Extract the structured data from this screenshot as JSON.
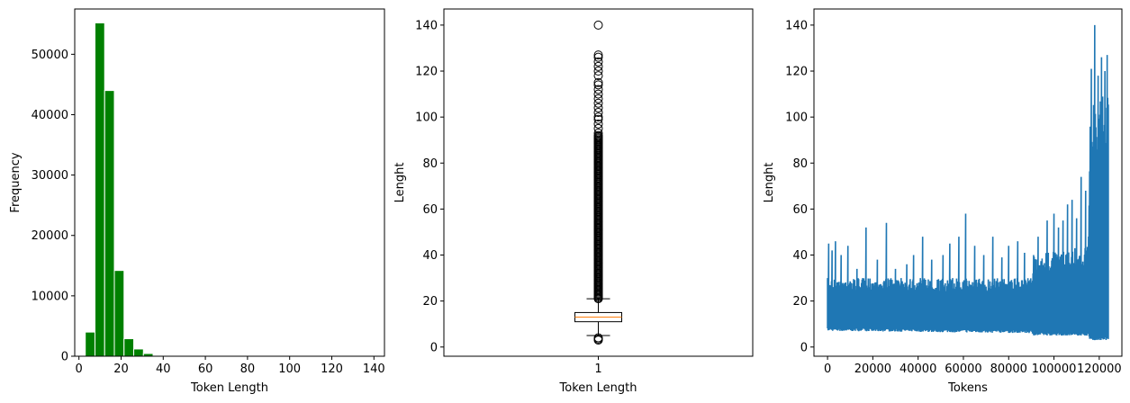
{
  "chart_data": [
    {
      "type": "bar",
      "subtype": "histogram",
      "xlabel": "Token Length",
      "ylabel": "Frequency",
      "xlim": [
        -2,
        145
      ],
      "ylim": [
        0,
        57500
      ],
      "xticks": [
        0,
        20,
        40,
        60,
        80,
        100,
        120,
        140
      ],
      "yticks": [
        0,
        10000,
        20000,
        30000,
        40000,
        50000
      ],
      "bin_width": 4.6,
      "bins": [
        {
          "start": 3.0,
          "value": 4000
        },
        {
          "start": 7.6,
          "value": 55200
        },
        {
          "start": 12.2,
          "value": 44000
        },
        {
          "start": 16.8,
          "value": 14200
        },
        {
          "start": 21.4,
          "value": 2900
        },
        {
          "start": 26.0,
          "value": 1200
        },
        {
          "start": 30.6,
          "value": 450
        },
        {
          "start": 35.2,
          "value": 150
        },
        {
          "start": 39.8,
          "value": 60
        },
        {
          "start": 44.4,
          "value": 25
        }
      ],
      "bar_color": "#008000",
      "edge_color": "#ffffff",
      "grid": false
    },
    {
      "type": "box",
      "xlabel": "Token Length",
      "ylabel": "Lenght",
      "ylim": [
        -4,
        147
      ],
      "xticks": [
        "1"
      ],
      "yticks": [
        0,
        20,
        40,
        60,
        80,
        100,
        120,
        140
      ],
      "box": {
        "q1": 11,
        "median": 13,
        "q3": 15,
        "whisker_low": 5,
        "whisker_high": 21
      },
      "outliers_high_dense_range": [
        21,
        92
      ],
      "outliers_high_sparse": [
        93,
        95,
        97,
        99,
        100,
        102,
        104,
        106,
        108,
        110,
        112,
        114,
        115,
        118,
        120,
        122,
        124,
        126,
        127,
        140
      ],
      "outliers_low": [
        3,
        3.5,
        4
      ],
      "median_color": "#ff7f0e",
      "grid": false
    },
    {
      "type": "line",
      "xlabel": "Tokens",
      "ylabel": "Lenght",
      "xlim": [
        -6000,
        130000
      ],
      "ylim": [
        -4,
        147
      ],
      "xticks": [
        0,
        20000,
        40000,
        60000,
        80000,
        100000,
        120000
      ],
      "yticks": [
        0,
        20,
        40,
        60,
        80,
        100,
        120,
        140
      ],
      "x_range": [
        0,
        124000
      ],
      "series_color": "#1f77b4",
      "band_envelope": [
        {
          "x": 0,
          "low": 7,
          "high": 30
        },
        {
          "x": 90000,
          "low": 6,
          "high": 30
        },
        {
          "x": 91000,
          "low": 5,
          "high": 40
        },
        {
          "x": 115000,
          "low": 5,
          "high": 44
        },
        {
          "x": 116000,
          "low": 3,
          "high": 105
        },
        {
          "x": 124000,
          "low": 3,
          "high": 112
        }
      ],
      "peaks": [
        {
          "x": 500,
          "y": 45
        },
        {
          "x": 2000,
          "y": 42
        },
        {
          "x": 3500,
          "y": 46
        },
        {
          "x": 6000,
          "y": 40
        },
        {
          "x": 9000,
          "y": 44
        },
        {
          "x": 13000,
          "y": 34
        },
        {
          "x": 17000,
          "y": 52
        },
        {
          "x": 22000,
          "y": 38
        },
        {
          "x": 26000,
          "y": 54
        },
        {
          "x": 30000,
          "y": 34
        },
        {
          "x": 35000,
          "y": 36
        },
        {
          "x": 38000,
          "y": 40
        },
        {
          "x": 42000,
          "y": 48
        },
        {
          "x": 46000,
          "y": 38
        },
        {
          "x": 51000,
          "y": 40
        },
        {
          "x": 54000,
          "y": 45
        },
        {
          "x": 58000,
          "y": 48
        },
        {
          "x": 61000,
          "y": 58
        },
        {
          "x": 65000,
          "y": 44
        },
        {
          "x": 69000,
          "y": 40
        },
        {
          "x": 73000,
          "y": 48
        },
        {
          "x": 77000,
          "y": 39
        },
        {
          "x": 80000,
          "y": 44
        },
        {
          "x": 84000,
          "y": 46
        },
        {
          "x": 87000,
          "y": 41
        },
        {
          "x": 93000,
          "y": 48
        },
        {
          "x": 97000,
          "y": 55
        },
        {
          "x": 100000,
          "y": 58
        },
        {
          "x": 102000,
          "y": 52
        },
        {
          "x": 104000,
          "y": 55
        },
        {
          "x": 106000,
          "y": 62
        },
        {
          "x": 108000,
          "y": 64
        },
        {
          "x": 110000,
          "y": 56
        },
        {
          "x": 112000,
          "y": 74
        },
        {
          "x": 114000,
          "y": 68
        },
        {
          "x": 116500,
          "y": 121
        },
        {
          "x": 118000,
          "y": 140
        },
        {
          "x": 119500,
          "y": 118
        },
        {
          "x": 121000,
          "y": 126
        },
        {
          "x": 122500,
          "y": 120
        },
        {
          "x": 123500,
          "y": 127
        }
      ],
      "grid": false
    }
  ]
}
